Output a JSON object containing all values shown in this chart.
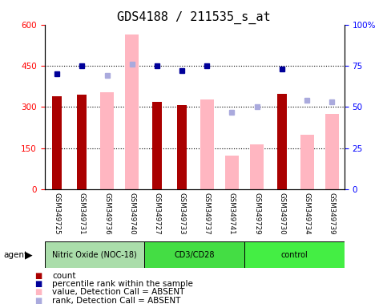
{
  "title": "GDS4188 / 211535_s_at",
  "samples": [
    "GSM349725",
    "GSM349731",
    "GSM349736",
    "GSM349740",
    "GSM349727",
    "GSM349733",
    "GSM349737",
    "GSM349741",
    "GSM349729",
    "GSM349730",
    "GSM349734",
    "GSM349739"
  ],
  "groups": [
    {
      "label": "Nitric Oxide (NOC-18)",
      "start": 0,
      "end": 3
    },
    {
      "label": "CD3/CD28",
      "start": 4,
      "end": 7
    },
    {
      "label": "control",
      "start": 8,
      "end": 11
    }
  ],
  "dark_red_bars": [
    340,
    345,
    null,
    null,
    320,
    308,
    null,
    null,
    null,
    348,
    null,
    null
  ],
  "pink_bars": [
    null,
    null,
    355,
    565,
    null,
    null,
    328,
    122,
    163,
    null,
    200,
    275
  ],
  "blue_squares": [
    70,
    75,
    null,
    null,
    75,
    72,
    75,
    null,
    null,
    73,
    null,
    null
  ],
  "lavender_squares": [
    null,
    null,
    69,
    76,
    null,
    null,
    null,
    47,
    50,
    null,
    54,
    53
  ],
  "ylim_left": [
    0,
    600
  ],
  "ylim_right": [
    0,
    100
  ],
  "yticks_left": [
    0,
    150,
    300,
    450,
    600
  ],
  "yticks_right": [
    0,
    25,
    50,
    75,
    100
  ],
  "hlines": [
    150,
    300,
    450
  ],
  "bar_width": 0.55,
  "dark_red_color": "#AA0000",
  "pink_color": "#FFB6C1",
  "blue_color": "#000099",
  "lavender_color": "#AAAADD",
  "bg_xlabel": "#C8C8C8",
  "group_colors": [
    "#AADDAA",
    "#44DD44",
    "#44EE44"
  ],
  "title_fontsize": 11,
  "legend_fontsize": 7.5,
  "tick_fontsize": 7.5
}
